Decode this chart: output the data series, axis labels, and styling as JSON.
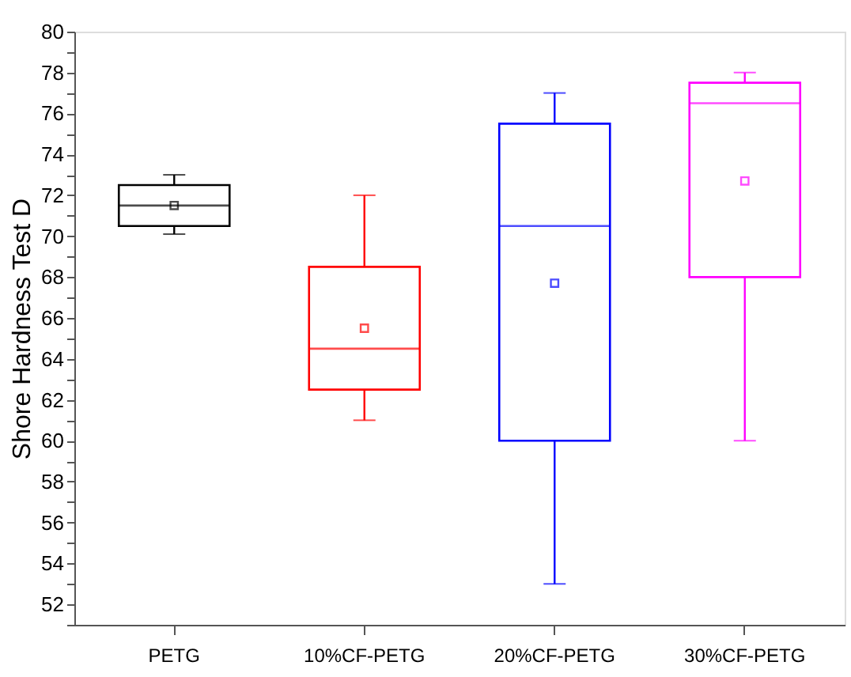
{
  "chart_data": {
    "type": "box",
    "ylabel": "Shore Hardness Test D",
    "categories": [
      "PETG",
      "10%CF-PETG",
      "20%CF-PETG",
      "30%CF-PETG"
    ],
    "colors": [
      "#000000",
      "#ff0000",
      "#0000ff",
      "#ff00ff"
    ],
    "boxes": [
      {
        "low": 70.1,
        "q1": 70.5,
        "median": 71.5,
        "q3": 72.5,
        "high": 73,
        "mean": 71.5
      },
      {
        "low": 61,
        "q1": 62.5,
        "median": 64.5,
        "q3": 68.5,
        "high": 72,
        "mean": 65.5
      },
      {
        "low": 53,
        "q1": 60,
        "median": 70.5,
        "q3": 75.5,
        "high": 77,
        "mean": 67.7
      },
      {
        "low": 60,
        "q1": 68,
        "median": 76.5,
        "q3": 77.5,
        "high": 78,
        "mean": 72.7
      }
    ],
    "ylim": [
      51,
      80
    ],
    "yticks": [
      {
        "value": 51,
        "label": null
      },
      52,
      {
        "value": 53,
        "label": null
      },
      54,
      {
        "value": 55,
        "label": null
      },
      56,
      {
        "value": 57,
        "label": null
      },
      58,
      {
        "value": 59,
        "label": null
      },
      60,
      {
        "value": 61,
        "label": null
      },
      62,
      {
        "value": 63,
        "label": null
      },
      64,
      {
        "value": 65,
        "label": null
      },
      66,
      {
        "value": 67,
        "label": null
      },
      68,
      {
        "value": 69,
        "label": null
      },
      70,
      {
        "value": 71,
        "label": null
      },
      72,
      {
        "value": 73,
        "label": null
      },
      74,
      {
        "value": 75,
        "label": null
      },
      76,
      {
        "value": 77,
        "label": null
      },
      78,
      {
        "value": 79,
        "label": null
      },
      80
    ],
    "marker": "square",
    "grid": false,
    "legend": false
  }
}
